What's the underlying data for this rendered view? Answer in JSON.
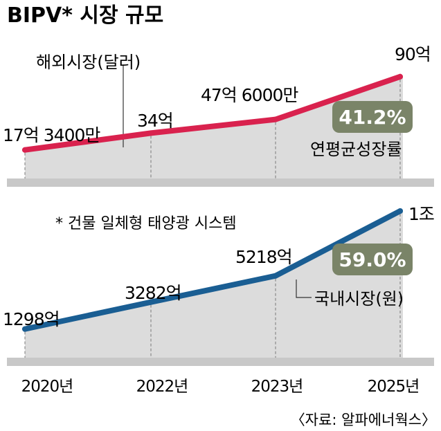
{
  "title": "BIPV* 시장 규모",
  "footnote": "* 건물 일체형 태양광 시스템",
  "source": "〈자료: 알파에너웍스〉",
  "colors": {
    "overseas": "#d9224e",
    "domestic": "#1a5e93",
    "badge": "#7a8468",
    "area": "#dcdcdc",
    "axis": "#9a9a9a"
  },
  "chart_data": [
    {
      "type": "area",
      "series_name": "해외시장(달러)",
      "categories": [
        "2020년",
        "2022년",
        "2023년",
        "2025년"
      ],
      "values": [
        1734000000,
        3400000000,
        4760000000,
        9000000000
      ],
      "value_labels": [
        "17억 3400만",
        "34억",
        "47억 6000만",
        "90억"
      ],
      "growth_label": "연평균성장률",
      "growth_rate": "41.2%"
    },
    {
      "type": "area",
      "series_name": "국내시장(원)",
      "categories": [
        "2020년",
        "2022년",
        "2023년",
        "2025년"
      ],
      "values": [
        129800000000,
        328200000000,
        521800000000,
        1000000000000
      ],
      "value_labels": [
        "1298억",
        "3282억",
        "5218억",
        "1조"
      ],
      "growth_rate": "59.0%"
    }
  ]
}
